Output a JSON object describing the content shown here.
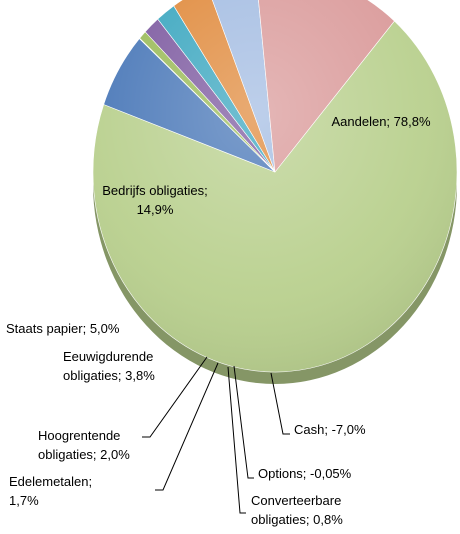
{
  "chart_data": {
    "type": "pie",
    "title": "",
    "legend": "none",
    "slices": [
      {
        "key": "aandelen",
        "label": "Aandelen; 78,8%",
        "lines": [
          "Aandelen; 78,8%"
        ],
        "value": 78.8,
        "color": "#b9d08e"
      },
      {
        "key": "cash",
        "label": "Cash; -7,0%",
        "lines": [
          "Cash; -7,0%"
        ],
        "value": -7.0,
        "color": "#4a78b8"
      },
      {
        "key": "options",
        "label": "Options; -0,05%",
        "lines": [
          "Options; -0,05%"
        ],
        "value": -0.05,
        "color": "#6d8b3c"
      },
      {
        "key": "converteerbare",
        "label": "Converteerbare obligaties; 0,8%",
        "lines": [
          "Converteerbare",
          "obligaties; 0,8%"
        ],
        "value": 0.8,
        "color": "#9bbb59"
      },
      {
        "key": "edelemetalen",
        "label": "Edelemetalen; 1,7%",
        "lines": [
          "Edelemetalen;",
          "1,7%"
        ],
        "value": 1.7,
        "color": "#7d5aa0"
      },
      {
        "key": "hoogrentende",
        "label": "Hoogrentende obligaties; 2,0%",
        "lines": [
          "Hoogrentende",
          "obligaties; 2,0%"
        ],
        "value": 2.0,
        "color": "#3aa6bf"
      },
      {
        "key": "eeuwigdurende",
        "label": "Eeuwigdurende obligaties; 3,8%",
        "lines": [
          "Eeuwigdurende",
          "obligaties; 3,8%"
        ],
        "value": 3.8,
        "color": "#e08a3c"
      },
      {
        "key": "staats",
        "label": "Staats papier; 5,0%",
        "lines": [
          "Staats papier; 5,0%"
        ],
        "value": 5.0,
        "color": "#a3bce2"
      },
      {
        "key": "bedrijfs",
        "label": "Bedrijfs obligaties; 14,9%",
        "lines": [
          "Bedrijfs obligaties;",
          "14,9%"
        ],
        "value": 14.9,
        "color": "#da9a9a"
      }
    ],
    "colors": {
      "cash_side": "#2f5487",
      "green_side": "#8fa86a",
      "options_side": "#4f6a28"
    }
  }
}
